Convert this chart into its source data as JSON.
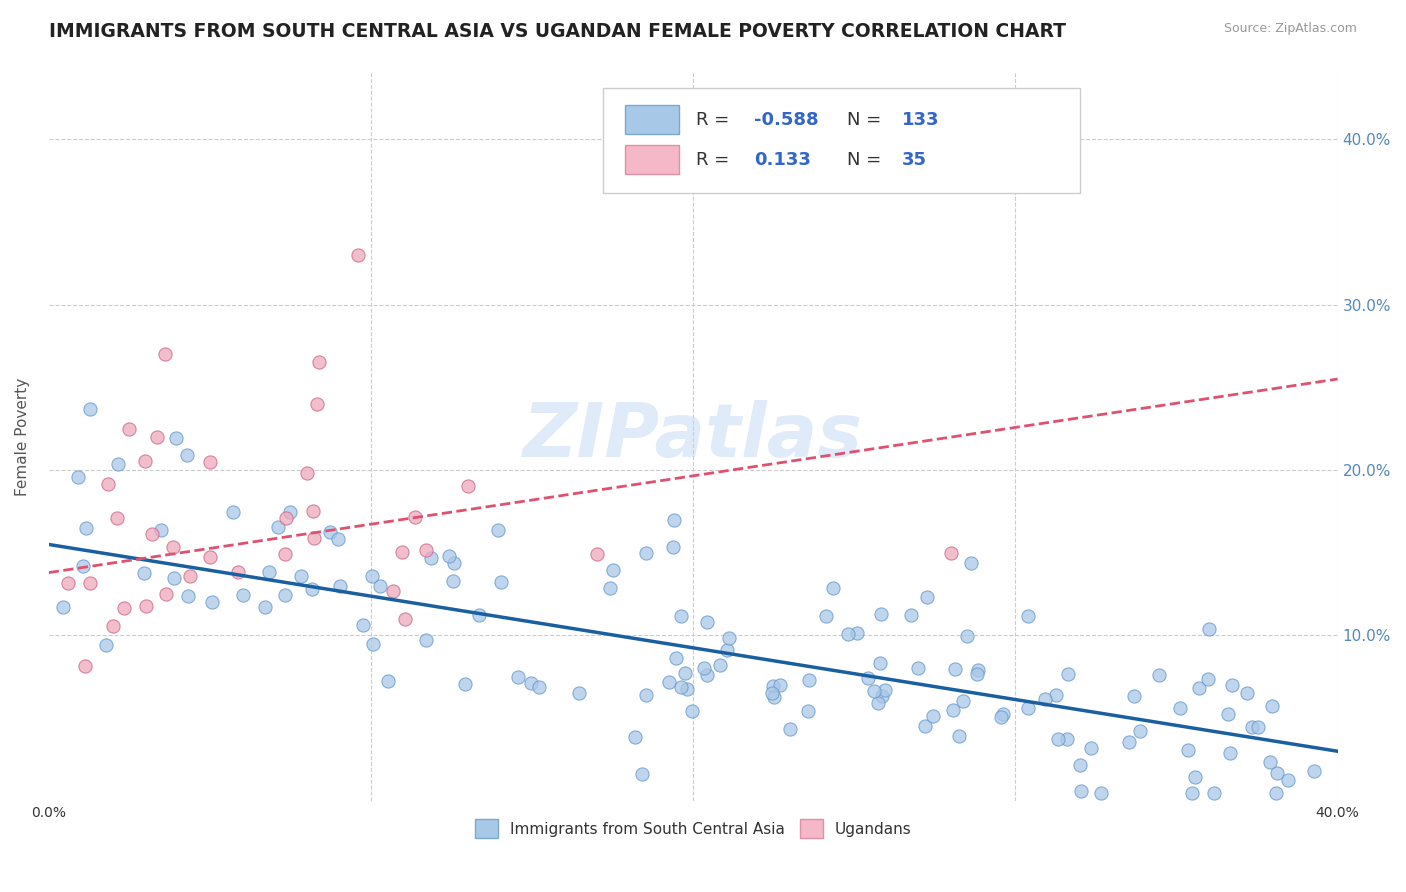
{
  "title": "IMMIGRANTS FROM SOUTH CENTRAL ASIA VS UGANDAN FEMALE POVERTY CORRELATION CHART",
  "source": "Source: ZipAtlas.com",
  "ylabel": "Female Poverty",
  "xlim": [
    0.0,
    0.4
  ],
  "ylim": [
    0.0,
    0.44
  ],
  "blue_scatter_color": "#a8c8e8",
  "pink_scatter_color": "#f0a8bc",
  "blue_line_color": "#1a5fa0",
  "pink_line_color": "#e05070",
  "watermark": "ZIPatlas",
  "background_color": "#ffffff",
  "grid_color": "#cccccc",
  "title_color": "#222222",
  "axis_label_color": "#5588bb",
  "blue_line_x0": 0.0,
  "blue_line_y0": 0.155,
  "blue_line_x1": 0.4,
  "blue_line_y1": 0.03,
  "pink_line_x0": 0.0,
  "pink_line_y0": 0.138,
  "pink_line_x1": 0.4,
  "pink_line_y1": 0.255,
  "blue_N": 133,
  "pink_N": 35,
  "blue_R": -0.588,
  "pink_R": 0.133
}
